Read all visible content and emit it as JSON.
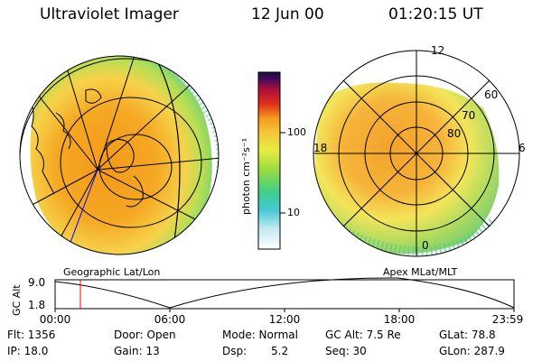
{
  "header": {
    "title": "Ultraviolet Imager",
    "date": "12 Jun 00",
    "time": "01:20:15 UT"
  },
  "left_panel": {
    "label": "Geographic Lat/Lon"
  },
  "right_panel": {
    "label": "Apex MLat/MLT",
    "mlt_labels": [
      "12",
      "18",
      "6",
      "0"
    ],
    "lat_labels": [
      "60",
      "70",
      "80"
    ]
  },
  "colorbar": {
    "unit_label": "photon cm⁻²s⁻¹",
    "ticks": [
      "100",
      "10"
    ]
  },
  "altitude_plot": {
    "ylabel": "GC Alt",
    "y_ticks": [
      "9.0",
      "1.8"
    ],
    "x_ticks": [
      "00:00",
      "06:00",
      "12:00",
      "18:00",
      "23:59"
    ],
    "marker_time": "01:20"
  },
  "info": {
    "flt": "Flt: 1356",
    "ip": "IP: 18.0",
    "door": "Door: Open",
    "gain": "Gain: 13",
    "mode": "Mode: Normal",
    "dsp_label": "Dsp:",
    "dsp_value": "5.2",
    "gcalt": "GC Alt: 7.5 Re",
    "seq": "Seq: 30",
    "glat": "GLat: 78.8",
    "glon": "GLon: 287.9"
  },
  "colors": {
    "aurora_orange": "#f5a21c",
    "aurora_yellow": "#f4e04a",
    "aurora_green": "#9cd64a",
    "aurora_cyan": "#4fd0d8",
    "marker": "#ff0000",
    "track_line": "#0000ff"
  }
}
